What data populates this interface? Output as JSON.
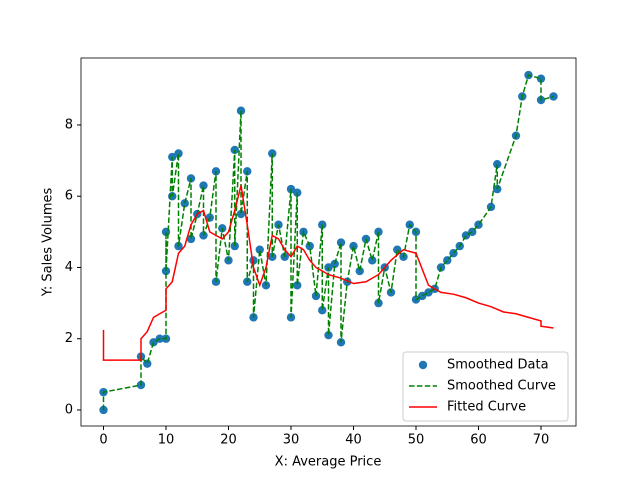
{
  "chart_data": {
    "type": "combo",
    "x_label": "X: Average Price",
    "y_label": "Y: Sales Volumes",
    "xlim": [
      -3.6,
      75.6
    ],
    "ylim": [
      -0.45,
      9.88
    ],
    "xticks": [
      0,
      10,
      20,
      30,
      40,
      50,
      60,
      70
    ],
    "yticks": [
      0,
      2,
      4,
      6,
      8
    ],
    "legend": "lower right",
    "series": [
      {
        "name": "Smoothed Data",
        "kind": "scatter",
        "color": "#1f77b4",
        "x": [
          0,
          0,
          6,
          6,
          7,
          8,
          9,
          10,
          10,
          10,
          11,
          11,
          12,
          12,
          13,
          14,
          14,
          15,
          16,
          16,
          17,
          18,
          18,
          19,
          20,
          21,
          21,
          22,
          22,
          23,
          23,
          24,
          24,
          25,
          26,
          27,
          27,
          28,
          29,
          30,
          30,
          31,
          31,
          32,
          33,
          34,
          35,
          35,
          36,
          36,
          37,
          38,
          38,
          39,
          40,
          41,
          42,
          43,
          44,
          44,
          45,
          46,
          47,
          48,
          49,
          50,
          50,
          51,
          52,
          53,
          54,
          55,
          56,
          57,
          58,
          59,
          60,
          62,
          63,
          63,
          66,
          67,
          68,
          70,
          70,
          72
        ],
        "values": [
          0,
          0.5,
          0.7,
          1.5,
          1.3,
          1.9,
          2.0,
          2.0,
          5.0,
          3.9,
          7.1,
          6.0,
          7.2,
          4.6,
          5.8,
          6.5,
          4.8,
          5.5,
          6.3,
          4.9,
          5.4,
          6.7,
          3.6,
          5.1,
          4.2,
          7.3,
          4.6,
          8.4,
          5.5,
          6.7,
          3.6,
          4.2,
          2.6,
          4.5,
          3.5,
          7.2,
          4.3,
          5.2,
          4.3,
          6.2,
          2.6,
          6.1,
          3.5,
          5.0,
          4.6,
          3.2,
          5.2,
          2.8,
          4.0,
          2.1,
          4.1,
          4.7,
          1.9,
          3.6,
          4.6,
          3.9,
          4.8,
          4.2,
          5.0,
          3.0,
          4.0,
          3.3,
          4.5,
          4.3,
          5.2,
          5.0,
          3.1,
          3.2,
          3.3,
          3.4,
          4.0,
          4.2,
          4.4,
          4.6,
          4.9,
          5.0,
          5.2,
          5.7,
          6.9,
          6.2,
          7.7,
          8.8,
          9.4,
          9.3,
          8.7,
          8.8
        ]
      },
      {
        "name": "Smoothed Curve",
        "kind": "dashed-line",
        "color": "#008000",
        "x": [
          0,
          0,
          6,
          6,
          7,
          8,
          9,
          10,
          10,
          10,
          11,
          11,
          12,
          12,
          13,
          14,
          14,
          15,
          16,
          16,
          17,
          18,
          18,
          19,
          20,
          21,
          21,
          22,
          22,
          23,
          23,
          24,
          24,
          25,
          26,
          27,
          27,
          28,
          29,
          30,
          30,
          31,
          31,
          32,
          33,
          34,
          35,
          35,
          36,
          36,
          37,
          38,
          38,
          39,
          40,
          41,
          42,
          43,
          44,
          44,
          45,
          46,
          47,
          48,
          49,
          50,
          50,
          51,
          52,
          53,
          54,
          55,
          56,
          57,
          58,
          59,
          60,
          62,
          63,
          63,
          66,
          67,
          68,
          70,
          70,
          72
        ],
        "values": [
          0,
          0.5,
          0.7,
          1.5,
          1.3,
          1.9,
          2.0,
          2.0,
          5.0,
          3.9,
          7.1,
          6.0,
          7.2,
          4.6,
          5.8,
          6.5,
          4.8,
          5.5,
          6.3,
          4.9,
          5.4,
          6.7,
          3.6,
          5.1,
          4.2,
          7.3,
          4.6,
          8.4,
          5.5,
          6.7,
          3.6,
          4.2,
          2.6,
          4.5,
          3.5,
          7.2,
          4.3,
          5.2,
          4.3,
          6.2,
          2.6,
          6.1,
          3.5,
          5.0,
          4.6,
          3.2,
          5.2,
          2.8,
          4.0,
          2.1,
          4.1,
          4.7,
          1.9,
          3.6,
          4.6,
          3.9,
          4.8,
          4.2,
          5.0,
          3.0,
          4.0,
          3.3,
          4.5,
          4.3,
          5.2,
          5.0,
          3.1,
          3.2,
          3.3,
          3.4,
          4.0,
          4.2,
          4.4,
          4.6,
          4.9,
          5.0,
          5.2,
          5.7,
          6.9,
          6.2,
          7.7,
          8.8,
          9.4,
          9.3,
          8.7,
          8.8
        ]
      },
      {
        "name": "Fitted Curve",
        "kind": "line",
        "color": "#ff0000",
        "x": [
          0,
          0,
          6,
          6,
          7,
          8,
          9,
          10,
          10,
          11,
          12,
          13,
          14,
          15,
          16,
          17,
          18,
          19,
          20,
          21,
          22,
          23,
          24,
          25,
          26,
          27,
          28,
          29,
          30,
          31,
          32,
          33,
          34,
          35,
          36,
          38,
          40,
          42,
          44,
          46,
          48,
          50,
          52,
          54,
          56,
          58,
          60,
          62,
          64,
          66,
          68,
          70,
          70,
          72
        ],
        "values": [
          2.25,
          1.4,
          1.4,
          2.0,
          2.2,
          2.6,
          2.7,
          2.8,
          3.4,
          3.6,
          4.4,
          4.6,
          5.2,
          5.5,
          5.6,
          5.0,
          4.9,
          4.8,
          5.0,
          5.6,
          6.3,
          5.2,
          4.0,
          3.5,
          4.0,
          4.9,
          4.8,
          4.5,
          4.3,
          4.6,
          4.5,
          4.2,
          4.0,
          3.9,
          3.8,
          3.7,
          3.55,
          3.6,
          3.8,
          4.2,
          4.5,
          4.4,
          3.5,
          3.3,
          3.25,
          3.15,
          3.0,
          2.9,
          2.75,
          2.7,
          2.6,
          2.5,
          2.35,
          2.3
        ]
      }
    ]
  }
}
